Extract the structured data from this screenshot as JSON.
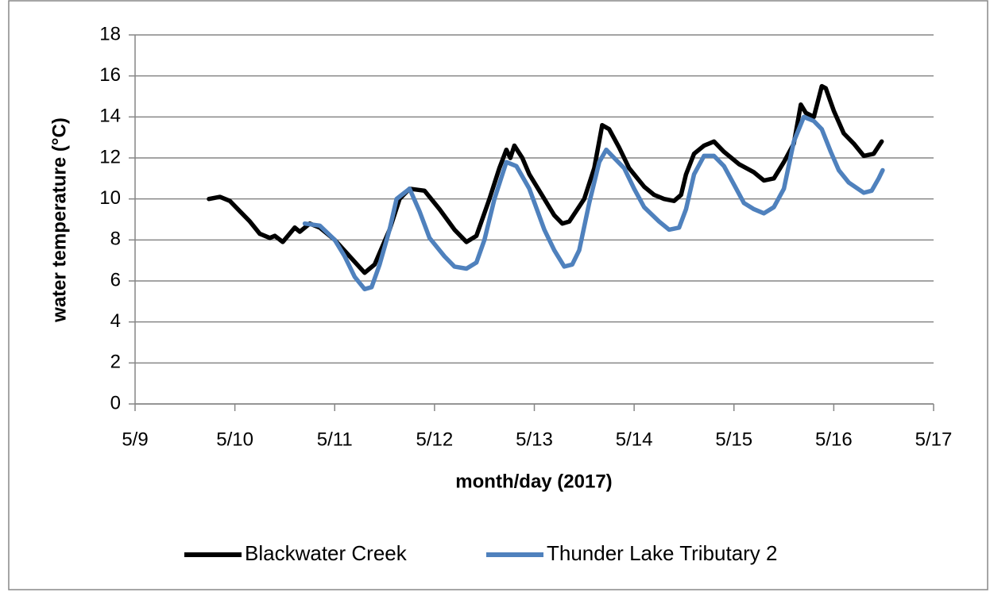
{
  "chart_data": {
    "type": "line",
    "x_label": "month/day (2017)",
    "y_label": "water temperature (°C)",
    "xlim": [
      9,
      17
    ],
    "xticks": [
      {
        "value": 9,
        "label": "5/9"
      },
      {
        "value": 10,
        "label": "5/10"
      },
      {
        "value": 11,
        "label": "5/11"
      },
      {
        "value": 12,
        "label": "5/12"
      },
      {
        "value": 13,
        "label": "5/13"
      },
      {
        "value": 14,
        "label": "5/14"
      },
      {
        "value": 15,
        "label": "5/15"
      },
      {
        "value": 16,
        "label": "5/16"
      },
      {
        "value": 17,
        "label": "5/17"
      }
    ],
    "ylim": [
      0,
      18
    ],
    "yticks": [
      0,
      2,
      4,
      6,
      8,
      10,
      12,
      14,
      16,
      18
    ],
    "grid": true,
    "legend": "bottom",
    "series": [
      {
        "name": "Blackwater Creek",
        "color": "#000000",
        "x": [
          9.74,
          9.85,
          9.95,
          10.05,
          10.15,
          10.25,
          10.35,
          10.4,
          10.48,
          10.6,
          10.65,
          10.75,
          10.85,
          11.0,
          11.15,
          11.3,
          11.4,
          11.55,
          11.65,
          11.75,
          11.9,
          12.05,
          12.2,
          12.32,
          12.42,
          12.55,
          12.65,
          12.72,
          12.76,
          12.8,
          12.88,
          12.95,
          13.1,
          13.2,
          13.28,
          13.35,
          13.5,
          13.6,
          13.68,
          13.75,
          13.85,
          13.95,
          14.1,
          14.2,
          14.3,
          14.4,
          14.47,
          14.52,
          14.6,
          14.7,
          14.8,
          14.9,
          15.05,
          15.2,
          15.3,
          15.4,
          15.5,
          15.6,
          15.67,
          15.72,
          15.8,
          15.88,
          15.92,
          16.0,
          16.1,
          16.2,
          16.3,
          16.4,
          16.48
        ],
        "values": [
          10.0,
          10.1,
          9.9,
          9.4,
          8.9,
          8.3,
          8.1,
          8.2,
          7.9,
          8.6,
          8.4,
          8.8,
          8.6,
          8.0,
          7.2,
          6.4,
          6.8,
          8.5,
          10.0,
          10.5,
          10.4,
          9.5,
          8.5,
          7.9,
          8.2,
          10.0,
          11.5,
          12.4,
          12.0,
          12.6,
          12.0,
          11.2,
          10.0,
          9.2,
          8.8,
          8.9,
          10.0,
          11.5,
          13.6,
          13.4,
          12.5,
          11.5,
          10.6,
          10.2,
          10.0,
          9.9,
          10.2,
          11.2,
          12.2,
          12.6,
          12.8,
          12.3,
          11.7,
          11.3,
          10.9,
          11.0,
          11.8,
          12.7,
          14.6,
          14.2,
          14.0,
          15.5,
          15.4,
          14.3,
          13.2,
          12.7,
          12.1,
          12.2,
          12.8
        ]
      },
      {
        "name": "Thunder Lake Tributary 2",
        "color": "#4f81bd",
        "x": [
          10.7,
          10.85,
          11.0,
          11.1,
          11.2,
          11.3,
          11.37,
          11.45,
          11.55,
          11.62,
          11.75,
          11.85,
          11.95,
          12.1,
          12.2,
          12.32,
          12.42,
          12.5,
          12.6,
          12.72,
          12.82,
          12.95,
          13.1,
          13.2,
          13.3,
          13.38,
          13.45,
          13.55,
          13.65,
          13.72,
          13.8,
          13.9,
          14.0,
          14.1,
          14.25,
          14.35,
          14.45,
          14.52,
          14.6,
          14.7,
          14.8,
          14.9,
          15.0,
          15.1,
          15.2,
          15.3,
          15.4,
          15.5,
          15.6,
          15.7,
          15.8,
          15.88,
          15.97,
          16.05,
          16.15,
          16.3,
          16.38,
          16.45,
          16.49
        ],
        "values": [
          8.8,
          8.7,
          8.0,
          7.2,
          6.2,
          5.6,
          5.7,
          6.8,
          8.5,
          10.0,
          10.5,
          9.4,
          8.1,
          7.2,
          6.7,
          6.6,
          6.9,
          8.0,
          10.0,
          11.8,
          11.6,
          10.5,
          8.5,
          7.5,
          6.7,
          6.8,
          7.5,
          9.8,
          11.8,
          12.4,
          12.0,
          11.5,
          10.5,
          9.6,
          8.9,
          8.5,
          8.6,
          9.5,
          11.2,
          12.1,
          12.1,
          11.6,
          10.7,
          9.8,
          9.5,
          9.3,
          9.6,
          10.5,
          12.8,
          14.0,
          13.8,
          13.4,
          12.3,
          11.4,
          10.8,
          10.3,
          10.4,
          11.0,
          11.4
        ]
      }
    ]
  }
}
